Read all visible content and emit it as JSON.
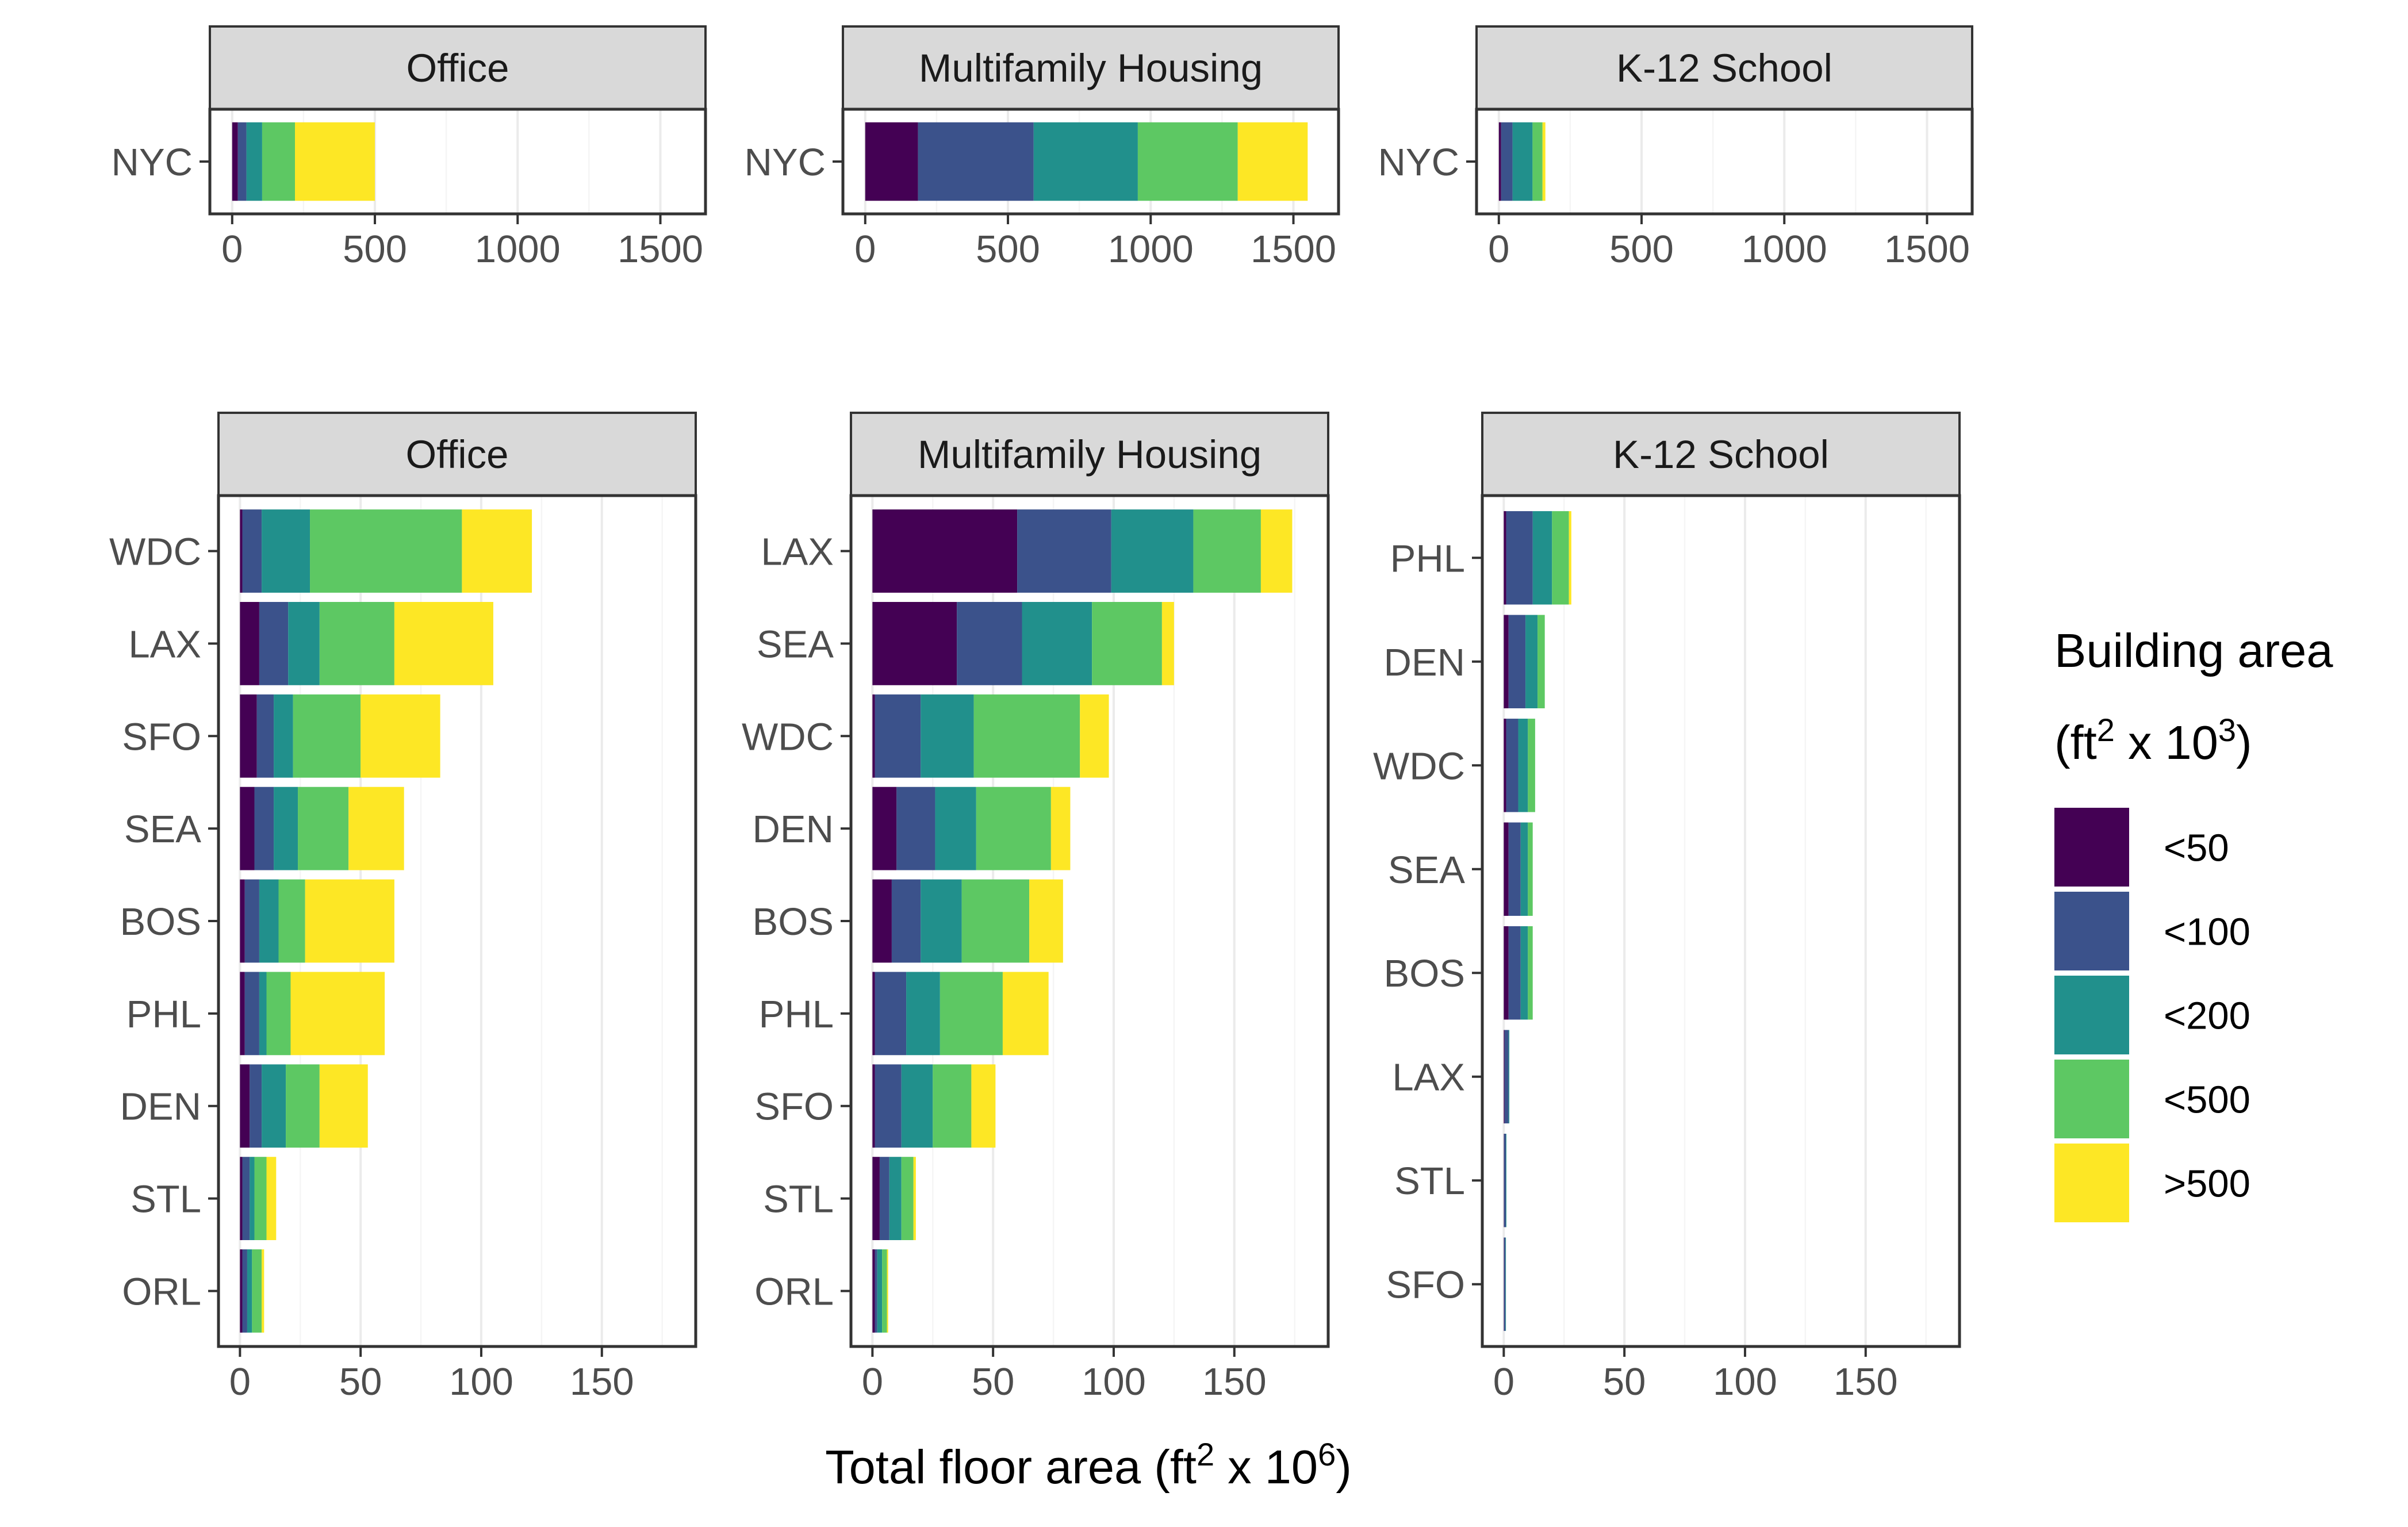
{
  "colors": {
    "<50": "#440154",
    "<100": "#3b528b",
    "<200": "#21908c",
    "<500": "#5dc863",
    ">500": "#fde725",
    "strip": "#d9d9d9",
    "grid_major": "#ebebeb",
    "grid_minor": "#f5f5f5"
  },
  "x_axis_title": {
    "main": "Total floor area (ft",
    "sup1": "2",
    "mid": " x 10",
    "sup2": "6",
    "end": ")"
  },
  "legend": {
    "title_line1": "Building area",
    "title_line2_main": "(ft",
    "title_line2_sup1": "2",
    "title_line2_mid": " x 10",
    "title_line2_sup2": "3",
    "title_line2_end": ")",
    "categories": [
      "<50",
      "<100",
      "<200",
      "<500",
      ">500"
    ]
  },
  "chart_data": [
    {
      "type": "bar",
      "orientation": "horizontal",
      "stacked": true,
      "panel": "Office",
      "row": "top",
      "categories": [
        "NYC"
      ],
      "xlim": [
        0,
        1580
      ],
      "x_ticks": [
        0,
        500,
        1000,
        1500
      ],
      "series": [
        {
          "name": "<50",
          "values": [
            20
          ]
        },
        {
          "name": "<100",
          "values": [
            30
          ]
        },
        {
          "name": "<200",
          "values": [
            55
          ]
        },
        {
          "name": "<500",
          "values": [
            115
          ]
        },
        {
          "name": ">500",
          "values": [
            280
          ]
        }
      ]
    },
    {
      "type": "bar",
      "orientation": "horizontal",
      "stacked": true,
      "panel": "Multifamily Housing",
      "row": "top",
      "categories": [
        "NYC"
      ],
      "xlim": [
        0,
        1580
      ],
      "x_ticks": [
        0,
        500,
        1000,
        1500
      ],
      "series": [
        {
          "name": "<50",
          "values": [
            185
          ]
        },
        {
          "name": "<100",
          "values": [
            405
          ]
        },
        {
          "name": "<200",
          "values": [
            365
          ]
        },
        {
          "name": "<500",
          "values": [
            350
          ]
        },
        {
          "name": ">500",
          "values": [
            245
          ]
        }
      ]
    },
    {
      "type": "bar",
      "orientation": "horizontal",
      "stacked": true,
      "panel": "K-12 School",
      "row": "top",
      "categories": [
        "NYC"
      ],
      "xlim": [
        0,
        1580
      ],
      "x_ticks": [
        0,
        500,
        1000,
        1500
      ],
      "series": [
        {
          "name": "<50",
          "values": [
            8
          ]
        },
        {
          "name": "<100",
          "values": [
            40
          ]
        },
        {
          "name": "<200",
          "values": [
            70
          ]
        },
        {
          "name": "<500",
          "values": [
            35
          ]
        },
        {
          "name": ">500",
          "values": [
            10
          ]
        }
      ]
    },
    {
      "type": "bar",
      "orientation": "horizontal",
      "stacked": true,
      "panel": "Office",
      "row": "bottom",
      "categories": [
        "WDC",
        "LAX",
        "SFO",
        "SEA",
        "BOS",
        "PHL",
        "DEN",
        "STL",
        "ORL"
      ],
      "xlim": [
        0,
        180
      ],
      "x_ticks": [
        0,
        50,
        100,
        150
      ],
      "series": [
        {
          "name": "<50",
          "values": [
            1,
            8,
            7,
            6,
            2,
            2,
            4,
            1,
            1
          ]
        },
        {
          "name": "<100",
          "values": [
            8,
            12,
            7,
            8,
            6,
            6,
            5,
            3,
            2
          ]
        },
        {
          "name": "<200",
          "values": [
            20,
            13,
            8,
            10,
            8,
            3,
            10,
            2,
            2
          ]
        },
        {
          "name": "<500",
          "values": [
            63,
            31,
            28,
            21,
            11,
            10,
            14,
            5,
            4
          ]
        },
        {
          "name": ">500",
          "values": [
            29,
            41,
            33,
            23,
            37,
            39,
            20,
            4,
            1
          ]
        }
      ]
    },
    {
      "type": "bar",
      "orientation": "horizontal",
      "stacked": true,
      "panel": "Multifamily Housing",
      "row": "bottom",
      "categories": [
        "LAX",
        "SEA",
        "WDC",
        "DEN",
        "BOS",
        "PHL",
        "SFO",
        "STL",
        "ORL"
      ],
      "xlim": [
        0,
        180
      ],
      "x_ticks": [
        0,
        50,
        100,
        150
      ],
      "series": [
        {
          "name": "<50",
          "values": [
            60,
            35,
            1,
            10,
            8,
            1,
            1,
            3,
            1
          ]
        },
        {
          "name": "<100",
          "values": [
            39,
            27,
            19,
            16,
            12,
            13,
            11,
            4,
            1
          ]
        },
        {
          "name": "<200",
          "values": [
            34,
            29,
            22,
            17,
            17,
            14,
            13,
            5,
            2
          ]
        },
        {
          "name": "<500",
          "values": [
            28,
            29,
            44,
            31,
            28,
            26,
            16,
            5,
            2
          ]
        },
        {
          "name": ">500",
          "values": [
            13,
            5,
            12,
            8,
            14,
            19,
            10,
            1,
            0.5
          ]
        }
      ]
    },
    {
      "type": "bar",
      "orientation": "horizontal",
      "stacked": true,
      "panel": "K-12 School",
      "row": "bottom",
      "categories": [
        "PHL",
        "DEN",
        "WDC",
        "SEA",
        "BOS",
        "LAX",
        "STL",
        "SFO"
      ],
      "xlim": [
        0,
        180
      ],
      "x_ticks": [
        0,
        50,
        100,
        150
      ],
      "series": [
        {
          "name": "<50",
          "values": [
            1,
            2,
            1,
            2,
            2,
            0.3,
            0.1,
            0.1
          ]
        },
        {
          "name": "<100",
          "values": [
            11,
            7,
            5,
            5,
            5,
            1.7,
            0.8,
            0.6
          ]
        },
        {
          "name": "<200",
          "values": [
            8,
            5,
            4,
            3,
            3,
            0.3,
            0.2,
            0.2
          ]
        },
        {
          "name": "<500",
          "values": [
            7,
            3,
            3,
            2,
            2,
            0,
            0,
            0
          ]
        },
        {
          "name": ">500",
          "values": [
            1,
            0,
            0,
            0,
            0,
            0,
            0,
            0
          ]
        }
      ]
    }
  ]
}
